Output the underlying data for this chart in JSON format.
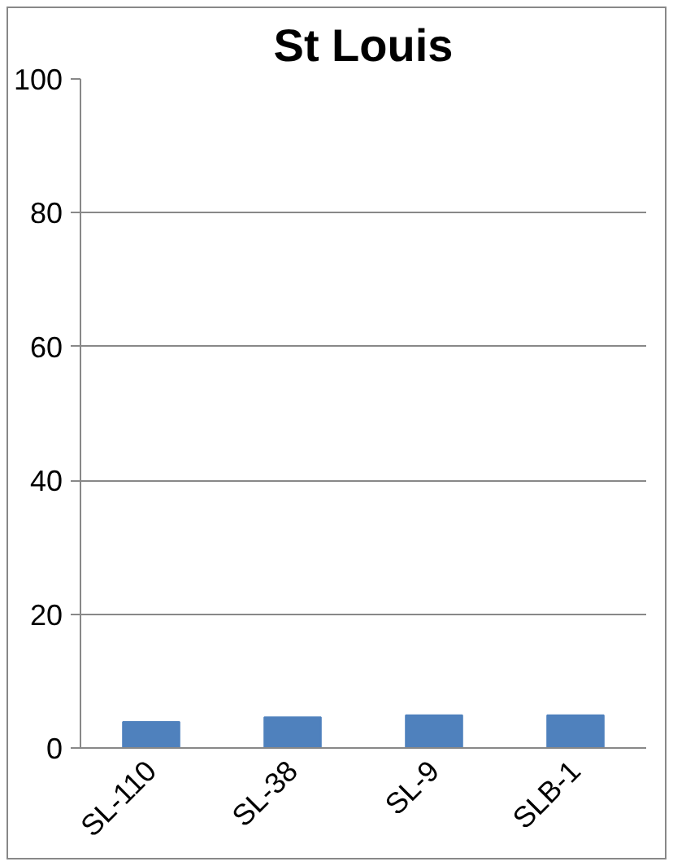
{
  "chart_data": {
    "type": "bar",
    "title": "St Louis",
    "categories": [
      "SL-110",
      "SL-38",
      "SL-9",
      "SLB-1"
    ],
    "values": [
      3.9,
      4.6,
      4.9,
      4.9
    ],
    "color": "#4f81bd",
    "ylim": [
      0,
      100
    ],
    "yticks": [
      0,
      20,
      40,
      60,
      80,
      100
    ],
    "grid": "y"
  }
}
